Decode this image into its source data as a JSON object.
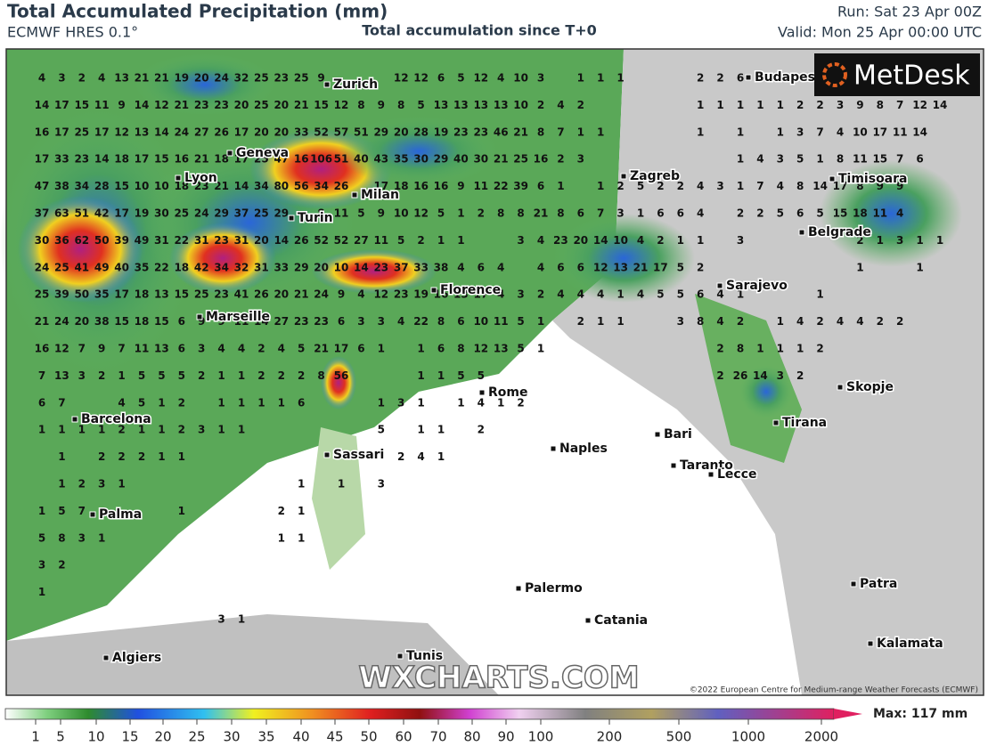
{
  "header": {
    "title": "Total Accumulated Precipitation (mm)",
    "subtitle": "ECMWF HRES 0.1°",
    "center_note": "Total accumulation since T+0",
    "run": "Run: Sat 23 Apr 00Z",
    "valid": "Valid: Mon 25 Apr 00:00 UTC"
  },
  "map": {
    "logo": "MetDesk",
    "watermark": "WXCHARTS.COM",
    "copyright": "©2022 European Centre for Medium-range Weather Forecasts (ECMWF)",
    "cities": [
      "Zurich",
      "Budapest",
      "Geneva",
      "Lyon",
      "Milan",
      "Zagreb",
      "Timisoara",
      "Turin",
      "Belgrade",
      "Florence",
      "Sarajevo",
      "Marseille",
      "Rome",
      "Skopje",
      "Barcelona",
      "Tirana",
      "Bari",
      "Naples",
      "Sassari",
      "Taranto",
      "Lecce",
      "Palma",
      "Palermo",
      "Patra",
      "Catania",
      "Kalamata",
      "Algiers",
      "Tunis"
    ],
    "grid_rows": [
      [
        4,
        3,
        2,
        4,
        13,
        21,
        21,
        19,
        20,
        24,
        32,
        25,
        23,
        25,
        9,
        null,
        null,
        null,
        12,
        12,
        6,
        5,
        12,
        4,
        10,
        3,
        null,
        1,
        1,
        1,
        null,
        null,
        null,
        2,
        2,
        6
      ],
      [
        14,
        17,
        15,
        11,
        9,
        14,
        12,
        21,
        23,
        23,
        20,
        25,
        20,
        21,
        15,
        12,
        8,
        9,
        8,
        5,
        13,
        13,
        13,
        13,
        10,
        2,
        4,
        2,
        null,
        null,
        null,
        null,
        null,
        1,
        1,
        1,
        1,
        1,
        2,
        2,
        3,
        9,
        8,
        7,
        12,
        14
      ],
      [
        16,
        17,
        25,
        17,
        12,
        13,
        14,
        24,
        27,
        26,
        17,
        20,
        20,
        33,
        52,
        57,
        51,
        29,
        20,
        28,
        19,
        23,
        23,
        46,
        21,
        8,
        7,
        1,
        1,
        null,
        null,
        null,
        null,
        1,
        null,
        1,
        null,
        1,
        3,
        7,
        4,
        10,
        17,
        11,
        14
      ],
      [
        17,
        33,
        23,
        14,
        18,
        17,
        15,
        16,
        21,
        18,
        17,
        25,
        47,
        16,
        106,
        51,
        40,
        43,
        35,
        30,
        29,
        40,
        30,
        21,
        25,
        16,
        2,
        3,
        null,
        null,
        null,
        null,
        null,
        null,
        null,
        1,
        4,
        3,
        5,
        1,
        8,
        11,
        15,
        7,
        6
      ],
      [
        47,
        38,
        34,
        28,
        15,
        10,
        10,
        18,
        23,
        21,
        14,
        34,
        80,
        56,
        34,
        26,
        null,
        17,
        18,
        16,
        16,
        9,
        11,
        22,
        39,
        6,
        1,
        null,
        1,
        2,
        5,
        2,
        2,
        4,
        3,
        1,
        7,
        4,
        8,
        14,
        17,
        8,
        9,
        9
      ],
      [
        37,
        63,
        51,
        42,
        17,
        19,
        30,
        25,
        24,
        29,
        37,
        25,
        29,
        null,
        8,
        11,
        5,
        9,
        10,
        12,
        5,
        1,
        2,
        8,
        8,
        21,
        8,
        6,
        7,
        3,
        1,
        6,
        6,
        4,
        null,
        2,
        2,
        5,
        6,
        5,
        15,
        18,
        11,
        4
      ],
      [
        30,
        36,
        62,
        50,
        39,
        49,
        31,
        22,
        31,
        23,
        31,
        20,
        14,
        26,
        52,
        52,
        27,
        11,
        5,
        2,
        1,
        1,
        null,
        null,
        3,
        4,
        23,
        20,
        14,
        10,
        4,
        2,
        1,
        1,
        null,
        3,
        null,
        null,
        null,
        null,
        null,
        2,
        1,
        3,
        1,
        1
      ],
      [
        24,
        25,
        41,
        49,
        40,
        35,
        22,
        18,
        42,
        34,
        32,
        31,
        33,
        29,
        20,
        10,
        14,
        23,
        37,
        33,
        38,
        4,
        6,
        4,
        null,
        4,
        6,
        6,
        12,
        13,
        21,
        17,
        5,
        2,
        null,
        null,
        null,
        null,
        null,
        null,
        null,
        1,
        null,
        null,
        1
      ],
      [
        25,
        39,
        50,
        35,
        17,
        18,
        13,
        15,
        25,
        23,
        41,
        26,
        20,
        21,
        24,
        9,
        4,
        12,
        23,
        19,
        16,
        13,
        17,
        4,
        3,
        2,
        4,
        4,
        4,
        1,
        4,
        5,
        5,
        6,
        4,
        1,
        null,
        null,
        null,
        1
      ],
      [
        21,
        24,
        20,
        38,
        15,
        18,
        15,
        6,
        9,
        9,
        11,
        14,
        27,
        23,
        23,
        6,
        3,
        3,
        4,
        22,
        8,
        6,
        10,
        11,
        5,
        1,
        null,
        2,
        1,
        1,
        null,
        null,
        3,
        8,
        4,
        2,
        null,
        1,
        4,
        2,
        4,
        4,
        2,
        2
      ],
      [
        16,
        12,
        7,
        9,
        7,
        11,
        13,
        6,
        3,
        4,
        4,
        2,
        4,
        5,
        21,
        17,
        6,
        1,
        null,
        1,
        6,
        8,
        12,
        13,
        5,
        1,
        null,
        null,
        null,
        null,
        null,
        null,
        null,
        null,
        2,
        8,
        1,
        1,
        1,
        2
      ],
      [
        7,
        13,
        3,
        2,
        1,
        5,
        5,
        5,
        2,
        1,
        1,
        2,
        2,
        2,
        8,
        56,
        null,
        null,
        null,
        1,
        1,
        5,
        5,
        null,
        null,
        null,
        null,
        null,
        null,
        null,
        null,
        null,
        null,
        null,
        2,
        26,
        14,
        3,
        2
      ],
      [
        6,
        7,
        null,
        null,
        4,
        5,
        1,
        2,
        null,
        1,
        1,
        1,
        1,
        6,
        null,
        null,
        null,
        1,
        3,
        1,
        null,
        1,
        4,
        1,
        2
      ],
      [
        1,
        1,
        1,
        1,
        2,
        1,
        1,
        2,
        3,
        1,
        1,
        null,
        null,
        null,
        null,
        null,
        null,
        5,
        null,
        1,
        1,
        null,
        2
      ],
      [
        null,
        1,
        null,
        2,
        2,
        2,
        1,
        1,
        null,
        null,
        null,
        null,
        null,
        null,
        null,
        null,
        null,
        null,
        2,
        4,
        1
      ],
      [
        null,
        1,
        2,
        3,
        1,
        null,
        null,
        null,
        null,
        null,
        null,
        null,
        null,
        1,
        null,
        1,
        null,
        3
      ],
      [
        1,
        5,
        7,
        null,
        null,
        null,
        null,
        1,
        null,
        null,
        null,
        null,
        2,
        1
      ],
      [
        5,
        8,
        3,
        1,
        null,
        null,
        null,
        null,
        null,
        null,
        null,
        null,
        1,
        1
      ],
      [
        3,
        2
      ],
      [
        1
      ],
      [
        null,
        null,
        null,
        null,
        null,
        null,
        null,
        null,
        null,
        3,
        1
      ]
    ]
  },
  "legend": {
    "max_label": "Max: 117 mm",
    "ticks": [
      1,
      5,
      10,
      15,
      20,
      25,
      30,
      35,
      40,
      45,
      50,
      60,
      70,
      80,
      90,
      100,
      200,
      500,
      1000,
      2000
    ]
  }
}
